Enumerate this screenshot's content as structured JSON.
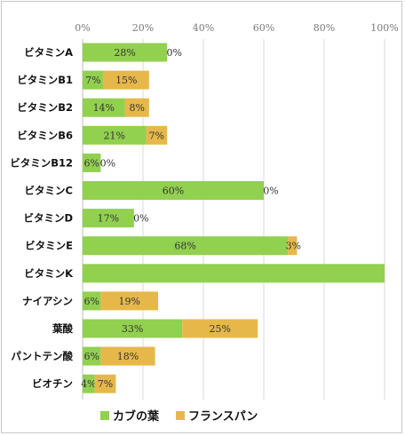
{
  "chart_data": {
    "type": "bar",
    "orientation": "horizontal",
    "stacked": true,
    "categories": [
      "ビタミンA",
      "ビタミンB1",
      "ビタミンB2",
      "ビタミンB6",
      "ビタミンB12",
      "ビタミンC",
      "ビタミンD",
      "ビタミンE",
      "ビタミンK",
      "ナイアシン",
      "葉酸",
      "パントテン酸",
      "ビオチン"
    ],
    "series": [
      {
        "name": "カブの葉",
        "color": "#92d050",
        "values": [
          28,
          7,
          14,
          21,
          6,
          60,
          17,
          68,
          100,
          6,
          33,
          6,
          4
        ],
        "labels": [
          "28%",
          "7%",
          "14%",
          "21%",
          "6%",
          "60%",
          "17%",
          "68%",
          "",
          "6%",
          "33%",
          "6%",
          "4%"
        ]
      },
      {
        "name": "フランスパン",
        "color": "#e6b84a",
        "values": [
          0,
          15,
          8,
          7,
          0,
          0,
          0,
          3,
          0,
          19,
          25,
          18,
          7
        ],
        "labels": [
          "0%",
          "15%",
          "8%",
          "7%",
          "0%",
          "0%",
          "0%",
          "3%",
          "",
          "19%",
          "25%",
          "18%",
          "7%"
        ]
      }
    ],
    "xlim": [
      0,
      100
    ],
    "ticks": [
      "0%",
      "20%",
      "40%",
      "60%",
      "80%",
      "100%"
    ],
    "grid": true,
    "legend_position": "bottom",
    "title": "",
    "xlabel": "",
    "ylabel": ""
  }
}
